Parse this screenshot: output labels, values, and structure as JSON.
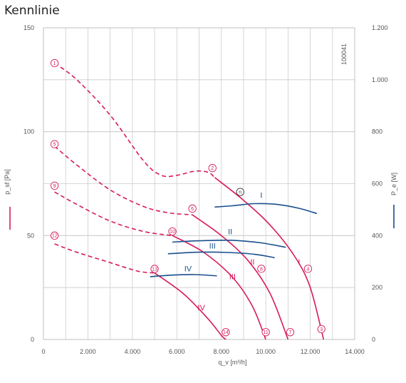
{
  "title": "Kennlinie",
  "chart_data": {
    "type": "line",
    "title": "Kennlinie",
    "id": "100041",
    "xlabel": "q_v [m³/h]",
    "ylabel_left": "p_sf [Pa]",
    "ylabel_right": "P_e [W]",
    "xlim": [
      0,
      14000
    ],
    "ylim_left": [
      0,
      150
    ],
    "ylim_right": [
      0,
      1200
    ],
    "grid": true,
    "x_ticks": [
      0,
      2000,
      4000,
      6000,
      8000,
      10000,
      12000,
      14000
    ],
    "x_tick_labels": [
      "0",
      "2.000",
      "4.000",
      "6.000",
      "8.000",
      "10.000",
      "12.000",
      "14.000"
    ],
    "y_ticks_left": [
      0,
      50,
      100,
      150
    ],
    "y_tick_labels_left": [
      "0",
      "50",
      "100",
      "150"
    ],
    "y_ticks_right": [
      0,
      200,
      400,
      600,
      800,
      1000,
      1200
    ],
    "y_tick_labels_right": [
      "0",
      "200",
      "400",
      "600",
      "800",
      "1.000",
      "1.200"
    ],
    "colors": {
      "pressure": "#d81b5c",
      "power": "#1a4f8c",
      "grid": "#cccccc"
    },
    "pressure_series": [
      {
        "dashed": [
          [
            500,
            133
          ],
          [
            1500,
            125
          ],
          [
            3000,
            108
          ],
          [
            4500,
            86
          ],
          [
            5300,
            79
          ],
          [
            6000,
            79
          ],
          [
            6800,
            81
          ],
          [
            7400,
            80.5
          ],
          [
            7700,
            78
          ]
        ],
        "solid": [
          [
            7700,
            78
          ],
          [
            9000,
            67
          ],
          [
            10200,
            55
          ],
          [
            11300,
            40
          ],
          [
            12000,
            25
          ],
          [
            12600,
            0
          ]
        ],
        "markers": [
          {
            "label": "1",
            "x": 500,
            "y": 133
          },
          {
            "label": "2",
            "x": 7600,
            "y": 82.5
          },
          {
            "label": "n",
            "x": 8850,
            "y": 71
          },
          {
            "label": "3",
            "x": 12500,
            "y": 5
          }
        ]
      },
      {
        "dashed": [
          [
            500,
            93
          ],
          [
            1500,
            84
          ],
          [
            3000,
            72
          ],
          [
            4500,
            64
          ],
          [
            5600,
            61
          ],
          [
            6700,
            60
          ]
        ],
        "solid": [
          [
            6700,
            60
          ],
          [
            8000,
            50
          ],
          [
            9200,
            38
          ],
          [
            10200,
            22
          ],
          [
            11000,
            0
          ]
        ],
        "markers": [
          {
            "label": "5",
            "x": 500,
            "y": 94
          },
          {
            "label": "6",
            "x": 6700,
            "y": 63
          },
          {
            "label": "7",
            "x": 11100,
            "y": 3.5
          }
        ]
      },
      {
        "dashed": [
          [
            500,
            71
          ],
          [
            1500,
            65
          ],
          [
            3000,
            57
          ],
          [
            4500,
            52
          ],
          [
            5800,
            50
          ]
        ],
        "solid": [
          [
            5800,
            50
          ],
          [
            7200,
            42
          ],
          [
            8500,
            30
          ],
          [
            9400,
            16
          ],
          [
            10000,
            0
          ]
        ],
        "markers": [
          {
            "label": "9",
            "x": 500,
            "y": 74
          },
          {
            "label": "10",
            "x": 5800,
            "y": 52
          },
          {
            "label": "11",
            "x": 10000,
            "y": 3.5
          }
        ]
      },
      {
        "dashed": [
          [
            500,
            46
          ],
          [
            1500,
            42
          ],
          [
            3000,
            37
          ],
          [
            4200,
            33
          ],
          [
            5000,
            32
          ]
        ],
        "solid": [
          [
            5000,
            32
          ],
          [
            6300,
            22
          ],
          [
            7400,
            10
          ],
          [
            8000,
            2
          ],
          [
            8200,
            0
          ]
        ],
        "markers": [
          {
            "label": "12",
            "x": 500,
            "y": 50
          },
          {
            "label": "13",
            "x": 5000,
            "y": 34
          },
          {
            "label": "14",
            "x": 8200,
            "y": 3.5
          }
        ]
      }
    ],
    "pressure_curve_labels": [
      {
        "text": "I",
        "x": 11500,
        "y": 36
      },
      {
        "text": "4",
        "x": 11900,
        "y": 33
      },
      {
        "text": "II",
        "x": 9400,
        "y": 36
      },
      {
        "text": "8",
        "x": 9800,
        "y": 33
      },
      {
        "text": "III",
        "x": 8500,
        "y": 29
      },
      {
        "text": "IV",
        "x": 7100,
        "y": 14
      }
    ],
    "power_series": [
      {
        "name": "I",
        "x": [
          7700,
          8500,
          9500,
          10500,
          11500,
          12300
        ],
        "y": [
          510,
          515,
          523,
          520,
          505,
          485
        ]
      },
      {
        "name": "II",
        "x": [
          5800,
          7000,
          8500,
          9800,
          10900
        ],
        "y": [
          375,
          380,
          382,
          372,
          355
        ]
      },
      {
        "name": "III",
        "x": [
          5600,
          7000,
          8300,
          9500,
          10400
        ],
        "y": [
          330,
          336,
          335,
          328,
          315
        ]
      },
      {
        "name": "IV",
        "x": [
          4800,
          5800,
          6800,
          7800
        ],
        "y": [
          242,
          248,
          250,
          245
        ]
      }
    ],
    "power_label_positions": [
      {
        "text": "I",
        "x": 9800,
        "y": 545
      },
      {
        "text": "II",
        "x": 8400,
        "y": 405
      },
      {
        "text": "III",
        "x": 7600,
        "y": 350
      },
      {
        "text": "IV",
        "x": 6500,
        "y": 262
      }
    ]
  }
}
